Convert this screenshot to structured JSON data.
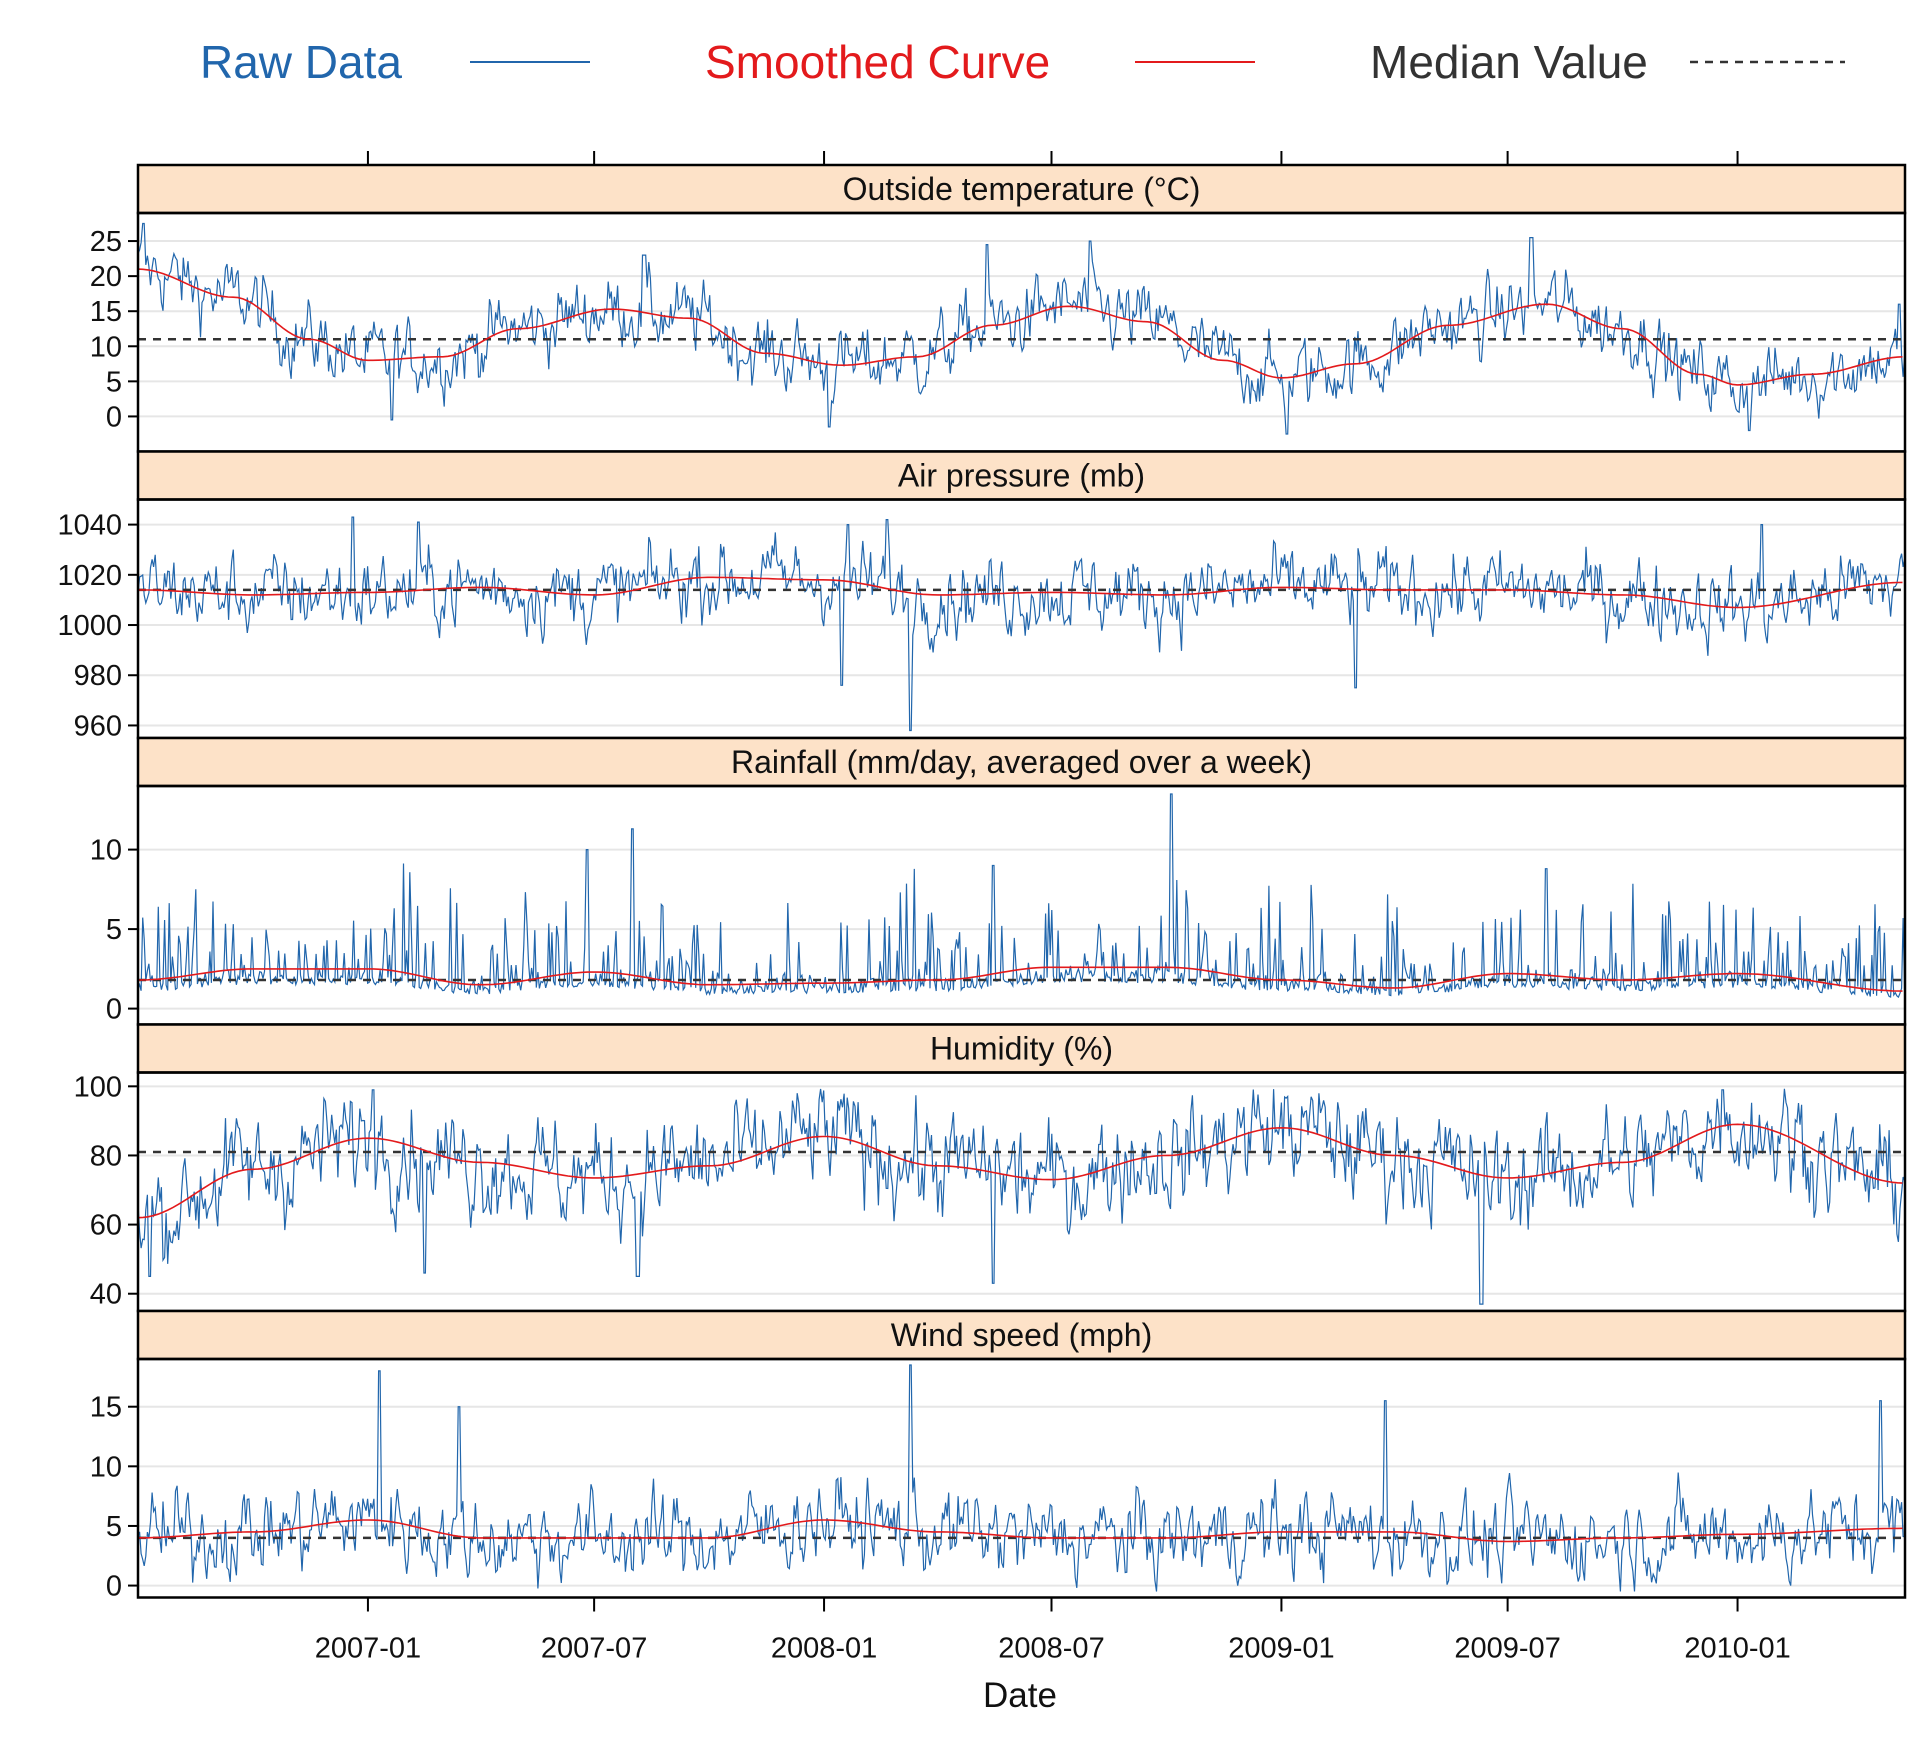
{
  "chart_data": {
    "type": "line",
    "layout": "5 stacked panels sharing a date x-axis",
    "xlabel": "Date",
    "x_range": [
      "2006-07-01",
      "2010-05-15"
    ],
    "x_ticks": [
      "2007-01",
      "2007-07",
      "2008-01",
      "2008-07",
      "2009-01",
      "2009-07",
      "2010-01"
    ],
    "grid": "horizontal gridlines at y ticks",
    "legend": {
      "placement": "top",
      "entries": [
        {
          "label": "Raw Data",
          "color": "#2166ac",
          "style": "solid"
        },
        {
          "label": "Smoothed Curve",
          "color": "#e31a1c",
          "style": "solid"
        },
        {
          "label": "Median Value",
          "color": "#333333",
          "style": "dashed"
        }
      ]
    },
    "strip_color": "#fde2c8",
    "panels": [
      {
        "title": "Outside temperature (°C)",
        "yticks": [
          0,
          5,
          10,
          15,
          20,
          25
        ],
        "ylim": [
          -5,
          29
        ],
        "median": 11,
        "smoothed": [
          [
            "2006-07-01",
            21
          ],
          [
            "2006-09-15",
            17
          ],
          [
            "2006-11-15",
            11
          ],
          [
            "2007-01-01",
            8
          ],
          [
            "2007-03-01",
            8.5
          ],
          [
            "2007-05-01",
            12.5
          ],
          [
            "2007-07-15",
            15.3
          ],
          [
            "2007-09-15",
            14
          ],
          [
            "2007-11-15",
            9
          ],
          [
            "2008-01-15",
            7.3
          ],
          [
            "2008-03-15",
            8.5
          ],
          [
            "2008-05-15",
            13
          ],
          [
            "2008-07-15",
            15.7
          ],
          [
            "2008-09-15",
            13.5
          ],
          [
            "2008-11-15",
            8
          ],
          [
            "2009-01-01",
            5.5
          ],
          [
            "2009-03-01",
            7.5
          ],
          [
            "2009-05-15",
            13
          ],
          [
            "2009-08-01",
            16
          ],
          [
            "2009-10-01",
            12.5
          ],
          [
            "2009-12-01",
            6
          ],
          [
            "2010-01-01",
            4.5
          ],
          [
            "2010-03-01",
            6
          ],
          [
            "2010-05-15",
            8.5
          ]
        ],
        "raw_annual": {
          "mean": 11,
          "amplitude": 5.2,
          "peak_month": 7.5,
          "noise": 4
        },
        "raw_points": [
          [
            "2006-07-05",
            27.5
          ],
          [
            "2007-01-20",
            -0.5
          ],
          [
            "2007-08-10",
            23
          ],
          [
            "2008-01-05",
            -1.5
          ],
          [
            "2008-05-10",
            24.5
          ],
          [
            "2008-08-01",
            25
          ],
          [
            "2009-01-05",
            -2.5
          ],
          [
            "2009-07-20",
            25.5
          ],
          [
            "2010-01-10",
            -2
          ],
          [
            "2010-05-10",
            16
          ]
        ]
      },
      {
        "title": "Air pressure (mb)",
        "yticks": [
          960,
          980,
          1000,
          1020,
          1040
        ],
        "ylim": [
          955,
          1050
        ],
        "median": 1014,
        "smoothed": [
          [
            "2006-07-01",
            1014
          ],
          [
            "2006-10-01",
            1012
          ],
          [
            "2007-01-01",
            1013
          ],
          [
            "2007-04-01",
            1015
          ],
          [
            "2007-07-01",
            1012
          ],
          [
            "2007-10-01",
            1019
          ],
          [
            "2008-01-01",
            1018
          ],
          [
            "2008-04-01",
            1012
          ],
          [
            "2008-07-01",
            1013
          ],
          [
            "2008-10-01",
            1012
          ],
          [
            "2009-01-01",
            1015
          ],
          [
            "2009-04-01",
            1014
          ],
          [
            "2009-07-01",
            1014
          ],
          [
            "2009-10-01",
            1012
          ],
          [
            "2010-01-01",
            1007
          ],
          [
            "2010-05-15",
            1017
          ]
        ],
        "raw_annual": {
          "mean": 1014,
          "amplitude": 0,
          "peak_month": 7,
          "noise": 12
        },
        "raw_points": [
          [
            "2006-12-20",
            1043
          ],
          [
            "2007-02-10",
            1041
          ],
          [
            "2008-01-20",
            1040
          ],
          [
            "2008-02-20",
            1042
          ],
          [
            "2008-03-10",
            958
          ],
          [
            "2008-01-15",
            976
          ],
          [
            "2009-03-01",
            975
          ],
          [
            "2010-01-20",
            1040
          ]
        ]
      },
      {
        "title": "Rainfall (mm/day, averaged over a week)",
        "yticks": [
          0,
          5,
          10
        ],
        "ylim": [
          -1,
          14
        ],
        "median": 1.8,
        "smoothed": [
          [
            "2006-07-01",
            1.8
          ],
          [
            "2006-10-01",
            2.5
          ],
          [
            "2007-01-01",
            2.5
          ],
          [
            "2007-04-01",
            1.5
          ],
          [
            "2007-07-01",
            2.3
          ],
          [
            "2007-10-01",
            1.5
          ],
          [
            "2008-01-01",
            1.6
          ],
          [
            "2008-04-01",
            1.8
          ],
          [
            "2008-07-01",
            2.6
          ],
          [
            "2008-10-01",
            2.6
          ],
          [
            "2009-01-01",
            1.8
          ],
          [
            "2009-04-01",
            1.3
          ],
          [
            "2009-07-01",
            2.2
          ],
          [
            "2009-10-01",
            1.8
          ],
          [
            "2010-01-01",
            2.2
          ],
          [
            "2010-05-15",
            1.1
          ]
        ],
        "raw_annual": {
          "mean": 1.8,
          "amplitude": 0,
          "peak_month": 1,
          "noise": 2.2
        },
        "raw_points": [
          [
            "2007-06-25",
            10
          ],
          [
            "2007-08-01",
            11.3
          ],
          [
            "2008-10-05",
            13.5
          ],
          [
            "2009-08-01",
            8.8
          ],
          [
            "2008-05-15",
            9
          ]
        ]
      },
      {
        "title": "Humidity (%)",
        "yticks": [
          40,
          60,
          80,
          100
        ],
        "ylim": [
          35,
          104
        ],
        "median": 81,
        "smoothed": [
          [
            "2006-07-01",
            62
          ],
          [
            "2006-10-01",
            76
          ],
          [
            "2007-01-01",
            85
          ],
          [
            "2007-04-01",
            78
          ],
          [
            "2007-07-01",
            73.5
          ],
          [
            "2007-10-01",
            77
          ],
          [
            "2008-01-01",
            85.5
          ],
          [
            "2008-04-01",
            77
          ],
          [
            "2008-07-01",
            73
          ],
          [
            "2008-10-01",
            80
          ],
          [
            "2009-01-01",
            88
          ],
          [
            "2009-04-01",
            80
          ],
          [
            "2009-07-01",
            73.5
          ],
          [
            "2009-10-01",
            78
          ],
          [
            "2010-01-01",
            89
          ],
          [
            "2010-05-15",
            72
          ]
        ],
        "raw_annual": {
          "mean": 80,
          "amplitude": 8,
          "peak_month": 1,
          "noise": 12
        },
        "raw_points": [
          [
            "2006-07-10",
            45
          ],
          [
            "2007-02-15",
            46
          ],
          [
            "2007-08-05",
            45
          ],
          [
            "2008-05-15",
            43
          ],
          [
            "2009-06-10",
            37
          ],
          [
            "2007-01-05",
            99
          ],
          [
            "2009-12-20",
            99
          ]
        ]
      },
      {
        "title": "Wind speed (mph)",
        "yticks": [
          0,
          5,
          10,
          15
        ],
        "ylim": [
          -1,
          19
        ],
        "median": 4,
        "smoothed": [
          [
            "2006-07-01",
            4
          ],
          [
            "2006-10-01",
            4.5
          ],
          [
            "2007-01-01",
            5.5
          ],
          [
            "2007-04-01",
            4
          ],
          [
            "2007-07-01",
            4
          ],
          [
            "2007-10-01",
            4
          ],
          [
            "2008-01-01",
            5.5
          ],
          [
            "2008-04-01",
            4.5
          ],
          [
            "2008-07-01",
            4
          ],
          [
            "2008-10-01",
            4
          ],
          [
            "2009-01-01",
            4.5
          ],
          [
            "2009-04-01",
            4.5
          ],
          [
            "2009-07-01",
            3.7
          ],
          [
            "2009-10-01",
            4
          ],
          [
            "2010-01-01",
            4.3
          ],
          [
            "2010-05-15",
            4.8
          ]
        ],
        "raw_annual": {
          "mean": 4.5,
          "amplitude": 1,
          "peak_month": 1,
          "noise": 2.8
        },
        "raw_points": [
          [
            "2007-01-10",
            18
          ],
          [
            "2007-03-15",
            15
          ],
          [
            "2008-03-10",
            18.5
          ],
          [
            "2009-03-25",
            15.5
          ],
          [
            "2010-04-25",
            15.5
          ]
        ]
      }
    ]
  }
}
